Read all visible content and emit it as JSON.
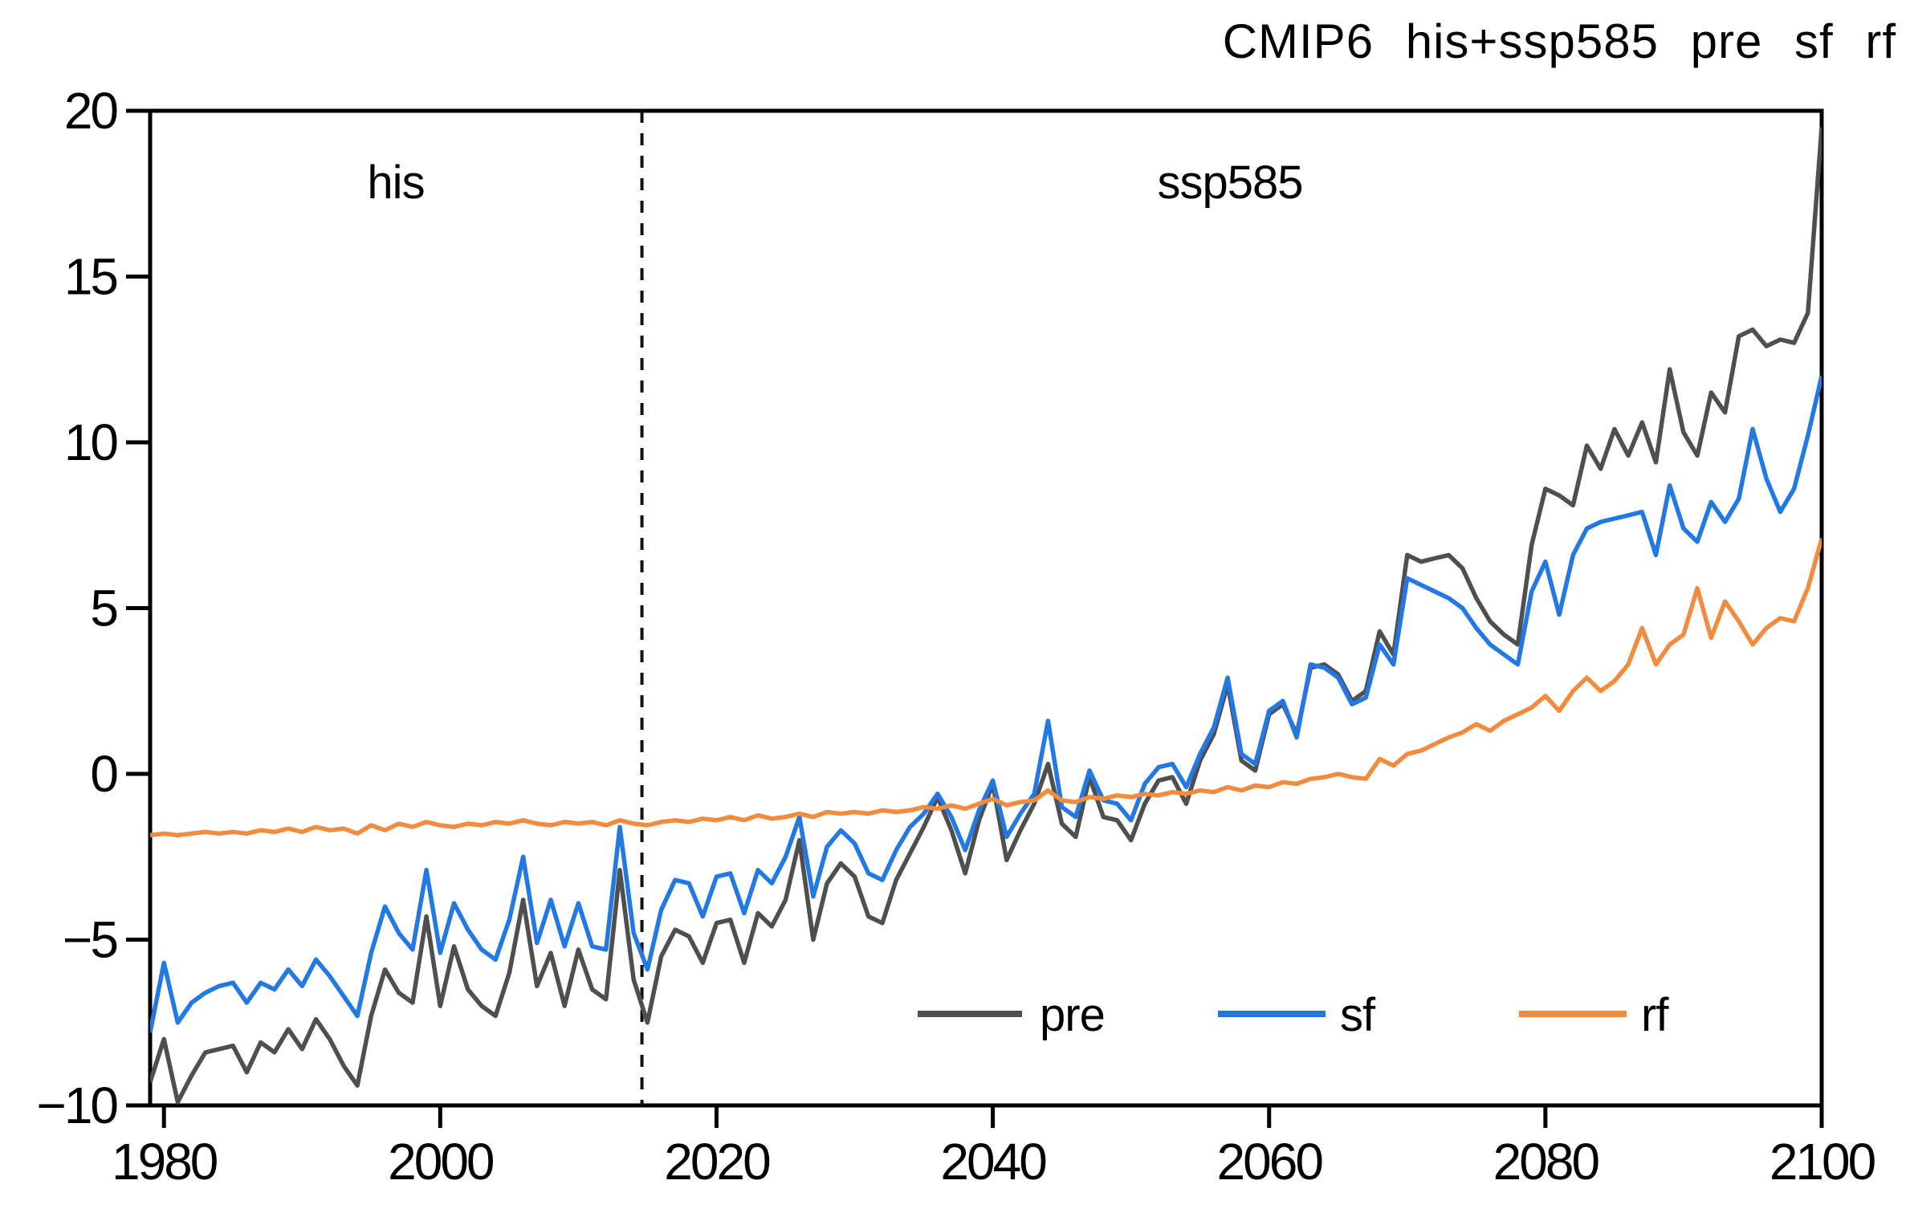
{
  "page": {
    "background": "#ffffff",
    "axis_color": "#000000",
    "text_color": "#000000"
  },
  "chart_data": {
    "type": "line",
    "title": "CMIP6 his+ssp585 pre sf rf",
    "xlabel": "",
    "ylabel": "",
    "xlim": [
      1979,
      2100
    ],
    "ylim": [
      -10,
      20
    ],
    "x_ticks": [
      1980,
      2000,
      2020,
      2040,
      2060,
      2080,
      2100
    ],
    "y_ticks": [
      -10,
      -5,
      0,
      5,
      10,
      15,
      20
    ],
    "grid": false,
    "boundary_year": 2014.6,
    "boundary_line_style": "dashed",
    "period_labels": {
      "left": "his",
      "right": "ssp585"
    },
    "legend_position": "inside-bottom-right",
    "year_start": 1979,
    "year_end": 2100,
    "series": [
      {
        "name": "pre",
        "color": "#4f4f4f",
        "values": [
          -9.3,
          -8.0,
          -9.9,
          -9.1,
          -8.4,
          -8.3,
          -8.2,
          -9.0,
          -8.1,
          -8.4,
          -7.7,
          -8.3,
          -7.4,
          -8.0,
          -8.8,
          -9.4,
          -7.3,
          -5.9,
          -6.6,
          -6.9,
          -4.3,
          -7.0,
          -5.2,
          -6.5,
          -7.0,
          -7.3,
          -6.0,
          -3.8,
          -6.4,
          -5.4,
          -7.0,
          -5.3,
          -6.5,
          -6.8,
          -2.9,
          -6.2,
          -7.5,
          -5.5,
          -4.7,
          -4.9,
          -5.7,
          -4.5,
          -4.4,
          -5.7,
          -4.2,
          -4.6,
          -3.8,
          -2.0,
          -5.0,
          -3.3,
          -2.7,
          -3.1,
          -4.3,
          -4.5,
          -3.2,
          -2.4,
          -1.6,
          -0.7,
          -1.7,
          -3.0,
          -1.4,
          -0.3,
          -2.6,
          -1.7,
          -0.9,
          0.3,
          -1.5,
          -1.9,
          -0.1,
          -1.3,
          -1.4,
          -2.0,
          -0.9,
          -0.2,
          -0.1,
          -0.9,
          0.4,
          1.2,
          2.7,
          0.4,
          0.1,
          1.8,
          2.1,
          1.2,
          3.2,
          3.3,
          3.0,
          2.2,
          2.5,
          4.3,
          3.6,
          6.6,
          6.4,
          6.5,
          6.6,
          6.2,
          5.3,
          4.6,
          4.2,
          3.9,
          6.9,
          8.6,
          8.4,
          8.1,
          9.9,
          9.2,
          10.4,
          9.6,
          10.6,
          9.4,
          12.2,
          10.3,
          9.6,
          11.5,
          10.9,
          13.2,
          13.4,
          12.9,
          13.1,
          13.0,
          13.9,
          19.5
        ]
      },
      {
        "name": "sf",
        "color": "#2279e4",
        "values": [
          -7.8,
          -5.7,
          -7.5,
          -6.9,
          -6.6,
          -6.4,
          -6.3,
          -6.9,
          -6.3,
          -6.5,
          -5.9,
          -6.4,
          -5.6,
          -6.1,
          -6.7,
          -7.3,
          -5.4,
          -4.0,
          -4.8,
          -5.3,
          -2.9,
          -5.4,
          -3.9,
          -4.7,
          -5.3,
          -5.6,
          -4.4,
          -2.5,
          -5.1,
          -3.8,
          -5.2,
          -3.9,
          -5.2,
          -5.3,
          -1.6,
          -4.8,
          -5.9,
          -4.1,
          -3.2,
          -3.3,
          -4.3,
          -3.1,
          -3.0,
          -4.2,
          -2.9,
          -3.3,
          -2.5,
          -1.3,
          -3.7,
          -2.2,
          -1.7,
          -2.1,
          -3.0,
          -3.2,
          -2.3,
          -1.6,
          -1.2,
          -0.6,
          -1.3,
          -2.3,
          -1.1,
          -0.2,
          -1.9,
          -1.2,
          -0.6,
          1.6,
          -1.0,
          -1.3,
          0.1,
          -0.8,
          -0.9,
          -1.4,
          -0.3,
          0.2,
          0.3,
          -0.4,
          0.6,
          1.4,
          2.9,
          0.6,
          0.3,
          1.9,
          2.2,
          1.1,
          3.3,
          3.2,
          2.9,
          2.1,
          2.3,
          3.9,
          3.3,
          5.9,
          5.7,
          5.5,
          5.3,
          5.0,
          4.4,
          3.9,
          3.6,
          3.3,
          5.5,
          6.4,
          4.8,
          6.6,
          7.4,
          7.6,
          7.7,
          7.8,
          7.9,
          6.6,
          8.7,
          7.4,
          7.0,
          8.2,
          7.6,
          8.3,
          10.4,
          8.9,
          7.9,
          8.6,
          10.2,
          12.0
        ]
      },
      {
        "name": "rf",
        "color": "#f18b3d",
        "values": [
          -1.85,
          -1.8,
          -1.85,
          -1.8,
          -1.75,
          -1.8,
          -1.75,
          -1.8,
          -1.7,
          -1.75,
          -1.65,
          -1.75,
          -1.6,
          -1.7,
          -1.65,
          -1.8,
          -1.55,
          -1.7,
          -1.5,
          -1.6,
          -1.45,
          -1.55,
          -1.6,
          -1.5,
          -1.55,
          -1.45,
          -1.5,
          -1.4,
          -1.5,
          -1.55,
          -1.45,
          -1.5,
          -1.45,
          -1.55,
          -1.4,
          -1.5,
          -1.55,
          -1.45,
          -1.4,
          -1.45,
          -1.35,
          -1.4,
          -1.3,
          -1.4,
          -1.25,
          -1.35,
          -1.3,
          -1.2,
          -1.3,
          -1.15,
          -1.2,
          -1.15,
          -1.2,
          -1.1,
          -1.15,
          -1.1,
          -1.0,
          -1.05,
          -0.95,
          -1.05,
          -0.9,
          -0.75,
          -0.95,
          -0.85,
          -0.8,
          -0.5,
          -0.8,
          -0.85,
          -0.7,
          -0.75,
          -0.65,
          -0.7,
          -0.6,
          -0.65,
          -0.55,
          -0.6,
          -0.5,
          -0.55,
          -0.4,
          -0.5,
          -0.35,
          -0.4,
          -0.25,
          -0.3,
          -0.15,
          -0.1,
          0.0,
          -0.1,
          -0.15,
          0.45,
          0.25,
          0.6,
          0.7,
          0.9,
          1.1,
          1.25,
          1.5,
          1.3,
          1.6,
          1.8,
          2.0,
          2.35,
          1.9,
          2.5,
          2.9,
          2.5,
          2.8,
          3.3,
          4.4,
          3.3,
          3.9,
          4.2,
          5.6,
          4.1,
          5.2,
          4.6,
          3.9,
          4.4,
          4.7,
          4.6,
          5.6,
          7.1
        ]
      }
    ],
    "legend": [
      {
        "label": "pre",
        "color": "#4f4f4f"
      },
      {
        "label": "sf",
        "color": "#2279e4"
      },
      {
        "label": "rf",
        "color": "#f18b3d"
      }
    ]
  }
}
